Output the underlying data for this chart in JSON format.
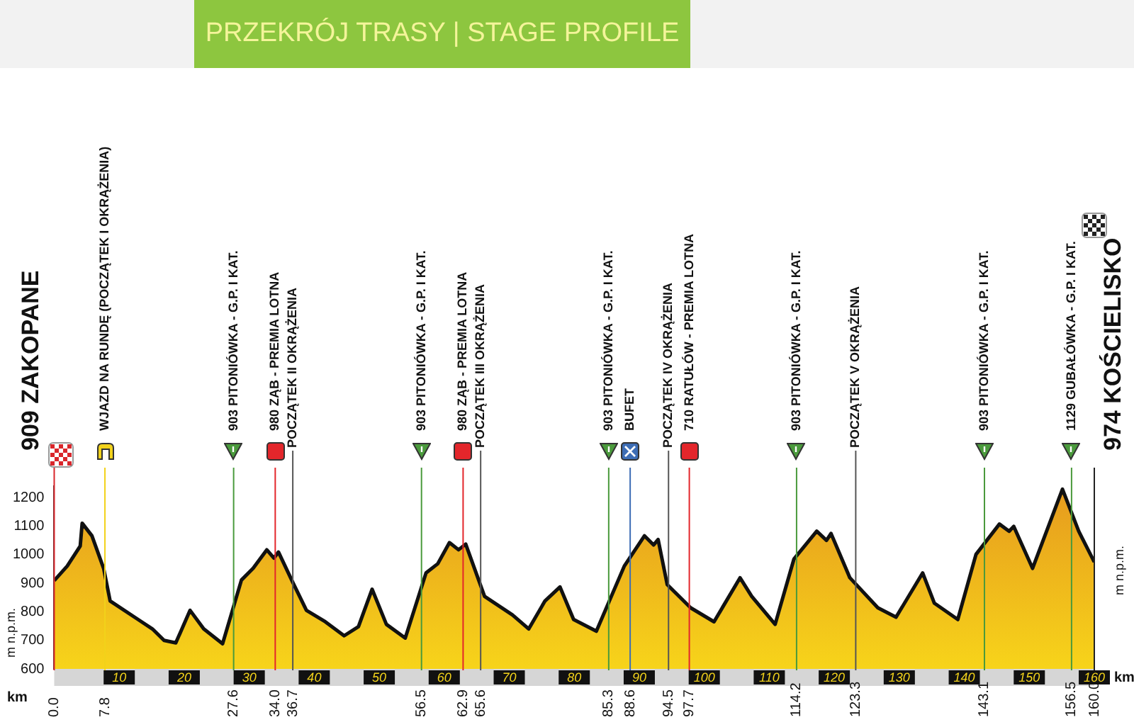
{
  "chart_data": {
    "type": "area",
    "title": "PRZEKRÓJ TRASY | STAGE PROFILE",
    "xlabel": "km",
    "ylabel": "m n.p.m.",
    "y2label": "m n.p.m.",
    "x": [
      0,
      2.0,
      4.0,
      4.3,
      5.8,
      7.6,
      8.6,
      12.9,
      15.1,
      16.9,
      18.7,
      20.9,
      23.0,
      25.9,
      28.8,
      30.6,
      32.7,
      33.8,
      34.5,
      36.7,
      38.8,
      41.7,
      44.6,
      46.8,
      48.9,
      51.1,
      54.0,
      57.2,
      59.0,
      60.8,
      62.2,
      63.3,
      66.2,
      70.5,
      73.0,
      75.5,
      77.8,
      79.9,
      83.4,
      87.7,
      90.8,
      92.2,
      92.9,
      94.3,
      97.9,
      101.5,
      105.5,
      107.3,
      110.9,
      113.8,
      117.3,
      118.8,
      119.5,
      122.4,
      126.7,
      129.5,
      133.6,
      135.4,
      139.0,
      141.8,
      145.4,
      146.9,
      147.6,
      150.5,
      155.1,
      157.6,
      160.0
    ],
    "series": [
      {
        "color": "#e69a1e",
        "values": [
          909,
          960,
          1030,
          1110,
          1066,
          952,
          838,
          773,
          740,
          700,
          691,
          805,
          740,
          688,
          911,
          952,
          1017,
          988,
          1009,
          903,
          805,
          765,
          716,
          748,
          879,
          756,
          708,
          936,
          968,
          1042,
          1017,
          1037,
          854,
          789,
          740,
          838,
          887,
          773,
          732,
          960,
          1066,
          1034,
          1053,
          895,
          814,
          765,
          919,
          854,
          756,
          985,
          1082,
          1050,
          1074,
          919,
          814,
          781,
          936,
          830,
          773,
          1001,
          1107,
          1082,
          1099,
          952,
          1229,
          1082,
          974
        ]
      }
    ],
    "xlim": [
      0,
      160
    ],
    "xticks": [
      10,
      20,
      30,
      40,
      50,
      60,
      70,
      80,
      90,
      100,
      110,
      120,
      130,
      140,
      150,
      160
    ],
    "x2lim": [
      0,
      160
    ],
    "x2ticks": [
      {
        "value": 0.0,
        "label": "0.0"
      },
      {
        "value": 7.8,
        "label": "7.8"
      },
      {
        "value": 27.6,
        "label": "27.6"
      },
      {
        "value": 34.0,
        "label": "34.0"
      },
      {
        "value": 36.7,
        "label": "36.7"
      },
      {
        "value": 56.5,
        "label": "56.5"
      },
      {
        "value": 62.9,
        "label": "62.9"
      },
      {
        "value": 65.6,
        "label": "65.6"
      },
      {
        "value": 85.3,
        "label": "85.3"
      },
      {
        "value": 88.6,
        "label": "88.6"
      },
      {
        "value": 94.5,
        "label": "94.5"
      },
      {
        "value": 97.7,
        "label": "97.7"
      },
      {
        "value": 114.2,
        "label": "114.2"
      },
      {
        "value": 123.3,
        "label": "123.3"
      },
      {
        "value": 143.1,
        "label": "143.1"
      },
      {
        "value": 156.5,
        "label": "156.5"
      },
      {
        "value": 160.0,
        "label": "160.0"
      }
    ],
    "ylim": [
      600,
      1240
    ],
    "yticks": [
      600,
      700,
      800,
      900,
      1000,
      1100,
      1200
    ],
    "grid": false,
    "legend": false,
    "ref_lines": [
      {
        "axis": "x",
        "value": 0.0,
        "label": "909 ZAKOPANE",
        "color": "#d9262b"
      },
      {
        "axis": "x",
        "value": 7.8,
        "label": "WJAZD NA RUNDĘ (POCZĄTEK I OKRĄŻENIA)",
        "color": "#f2d21b"
      },
      {
        "axis": "x",
        "value": 27.6,
        "label": "903 PITONIÓWKA - G.P. I KAT.",
        "color": "#4a9a3c"
      },
      {
        "axis": "x",
        "value": 34.0,
        "label": "980 ZĄB - PREMIA LOTNA",
        "color": "#e3262b"
      },
      {
        "axis": "x",
        "value": 36.7,
        "label": "POCZĄTEK II OKRĄŻENIA"
      },
      {
        "axis": "x",
        "value": 56.5,
        "label": "903 PITONIÓWKA - G.P. I KAT.",
        "color": "#4a9a3c"
      },
      {
        "axis": "x",
        "value": 62.9,
        "label": "980 ZĄB - PREMIA LOTNA",
        "color": "#e3262b"
      },
      {
        "axis": "x",
        "value": 65.6,
        "label": "POCZĄTEK III OKRĄŻENIA"
      },
      {
        "axis": "x",
        "value": 85.3,
        "label": "903 PITONIÓWKA - G.P. I KAT.",
        "color": "#4a9a3c"
      },
      {
        "axis": "x",
        "value": 88.6,
        "label": "BUFET",
        "color": "#3d6db5"
      },
      {
        "axis": "x",
        "value": 94.5,
        "label": "POCZĄTEK IV OKRĄŻENIA"
      },
      {
        "axis": "x",
        "value": 97.7,
        "label": "710 RATUŁÓW - PREMIA LOTNA",
        "color": "#e3262b"
      },
      {
        "axis": "x",
        "value": 114.2,
        "label": "903 PITONIÓWKA - G.P. I KAT.",
        "color": "#4a9a3c"
      },
      {
        "axis": "x",
        "value": 123.3,
        "label": "POCZĄTEK V OKRĄŻENIA"
      },
      {
        "axis": "x",
        "value": 143.1,
        "label": "903 PITONIÓWKA - G.P. I KAT.",
        "color": "#4a9a3c"
      },
      {
        "axis": "x",
        "value": 156.5,
        "label": "1129 GUBAŁÓWKA - G.P. I KAT.",
        "color": "#4a9a3c"
      },
      {
        "axis": "x",
        "value": 160.0,
        "label": "974 KOŚCIELISKO",
        "color": "#222222"
      }
    ]
  }
}
